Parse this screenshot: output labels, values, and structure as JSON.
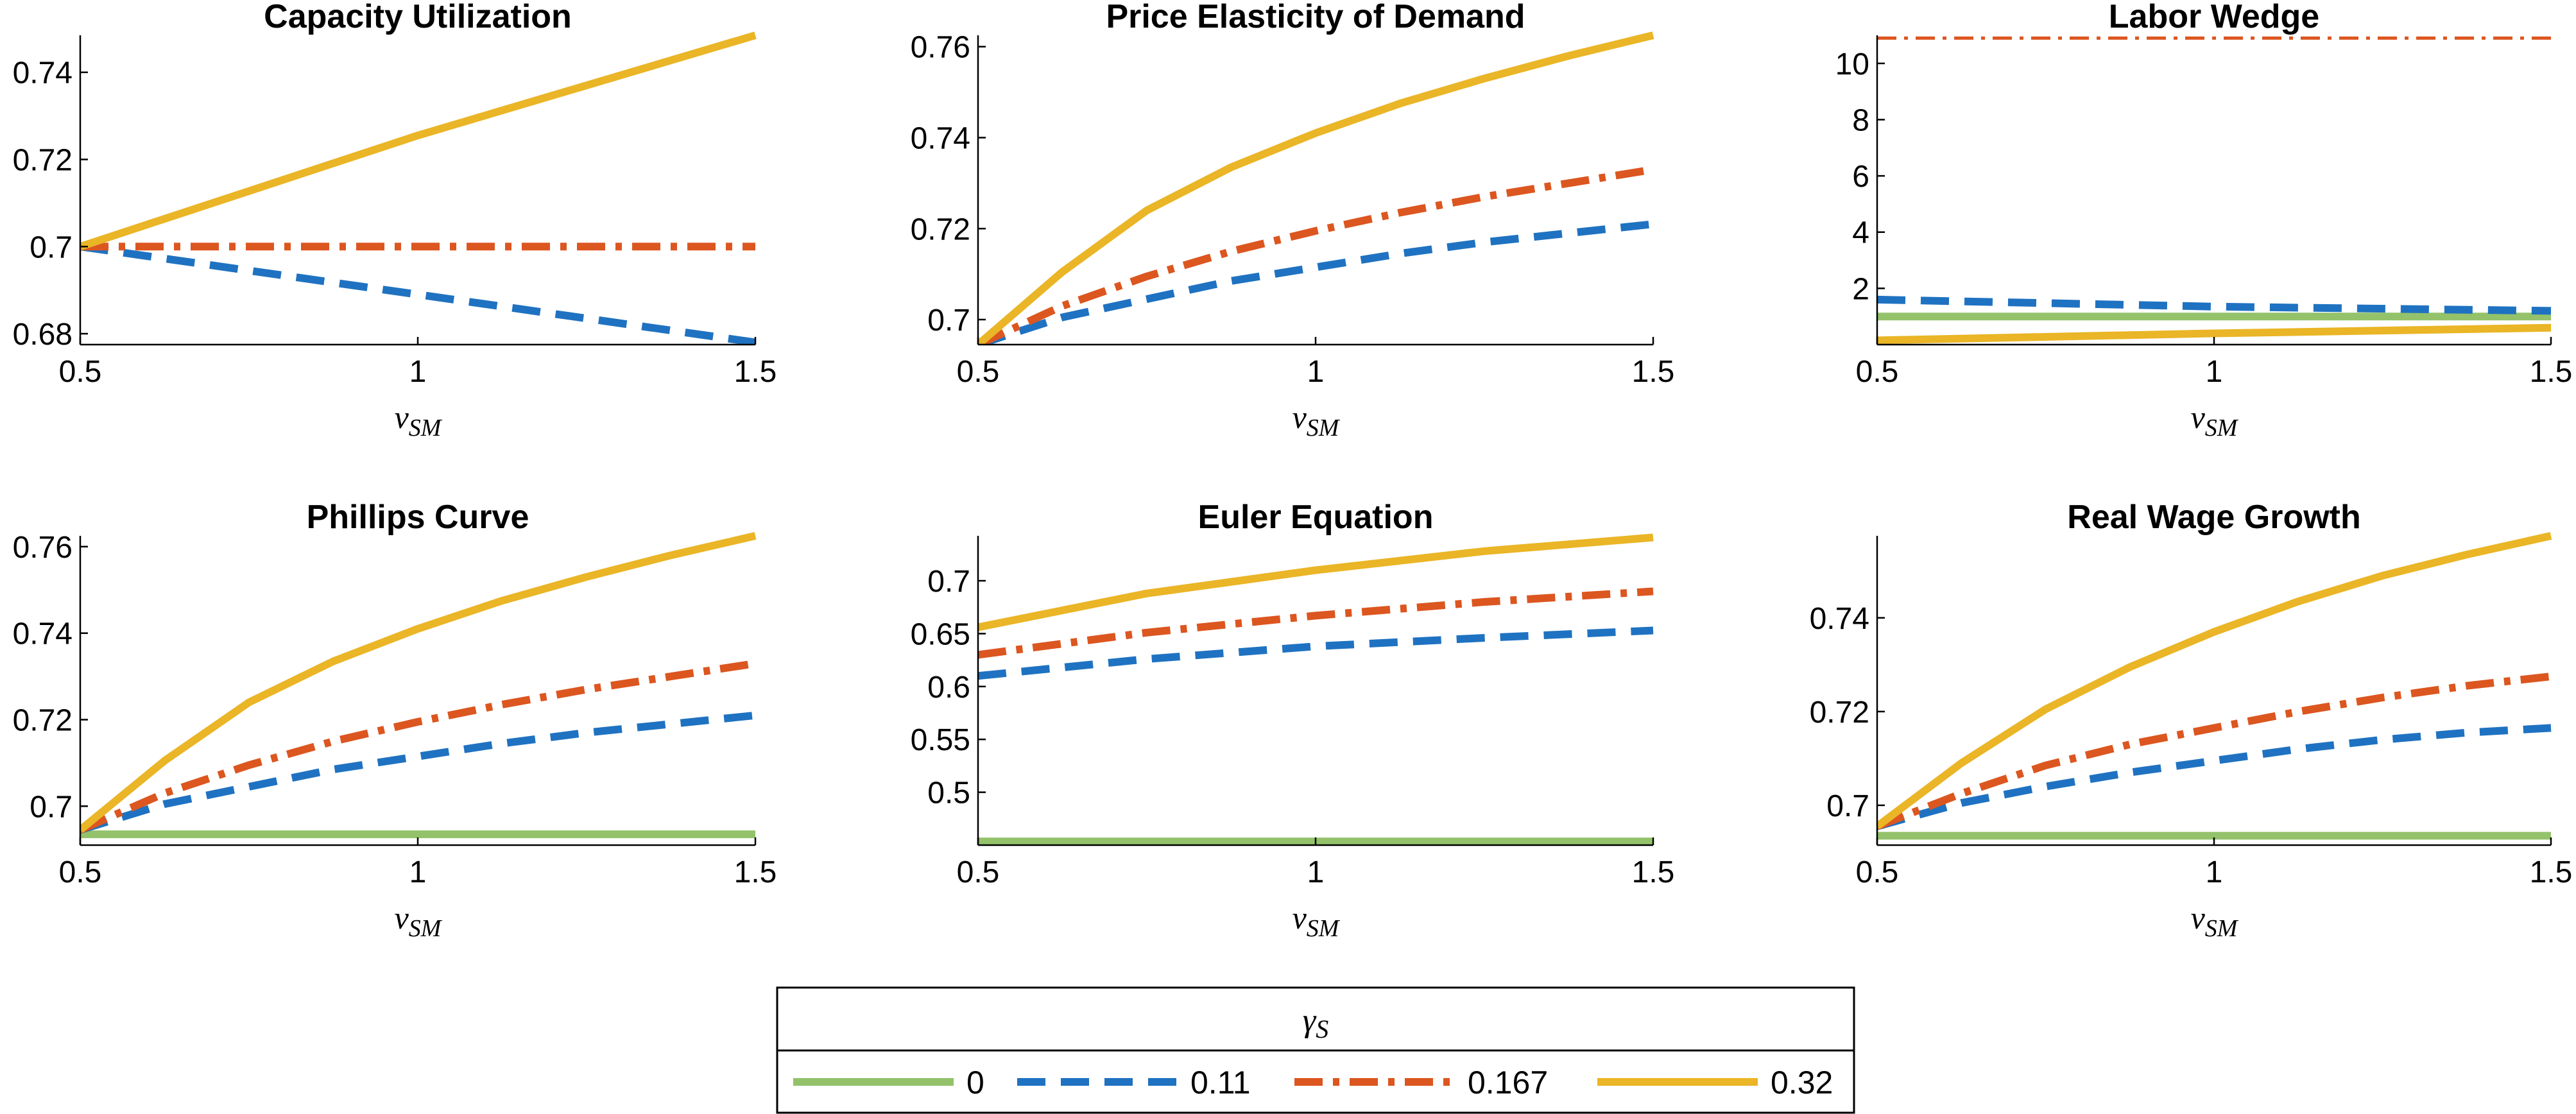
{
  "colors": {
    "g0": "#93c26a",
    "g011": "#1f72c1",
    "g0167": "#dc5620",
    "g032": "#eab526"
  },
  "chart_data": [
    {
      "type": "line",
      "title": "Capacity Utilization",
      "xlabel": "ν",
      "xlabel_sub": "SM",
      "xlim": [
        0.5,
        1.5
      ],
      "ylim": [
        0.6775,
        0.7485
      ],
      "xticks": [
        0.5,
        1,
        1.5
      ],
      "xtick_labels": [
        "0.5",
        "1",
        "1.5"
      ],
      "yticks": [
        0.68,
        0.7,
        0.72,
        0.74
      ],
      "ytick_labels": [
        "0.68",
        "0.7",
        "0.72",
        "0.74"
      ],
      "series": [
        {
          "key": "g011",
          "x": [
            0.5,
            1.5
          ],
          "y": [
            0.7,
            0.678
          ]
        },
        {
          "key": "g0167",
          "x": [
            0.5,
            1.5
          ],
          "y": [
            0.7,
            0.7
          ]
        },
        {
          "key": "g032",
          "x": [
            0.5,
            1.0,
            1.5
          ],
          "y": [
            0.7,
            0.7255,
            0.7485
          ]
        }
      ]
    },
    {
      "type": "line",
      "title": "Price Elasticity of Demand",
      "xlabel": "ν",
      "xlabel_sub": "SM",
      "xlim": [
        0.5,
        1.5
      ],
      "ylim": [
        0.6945,
        0.7625
      ],
      "xticks": [
        0.5,
        1,
        1.5
      ],
      "xtick_labels": [
        "0.5",
        "1",
        "1.5"
      ],
      "yticks": [
        0.7,
        0.72,
        0.74,
        0.76
      ],
      "ytick_labels": [
        "0.7",
        "0.72",
        "0.74",
        "0.76"
      ],
      "series": [
        {
          "key": "g011",
          "x": [
            0.5,
            0.625,
            0.75,
            0.875,
            1.0,
            1.125,
            1.25,
            1.375,
            1.5
          ],
          "y": [
            0.6945,
            0.7005,
            0.7045,
            0.7085,
            0.7115,
            0.7145,
            0.717,
            0.719,
            0.721
          ]
        },
        {
          "key": "g0167",
          "x": [
            0.5,
            0.625,
            0.75,
            0.875,
            1.0,
            1.125,
            1.25,
            1.375,
            1.5
          ],
          "y": [
            0.6945,
            0.703,
            0.7095,
            0.715,
            0.7195,
            0.7235,
            0.727,
            0.73,
            0.733
          ]
        },
        {
          "key": "g032",
          "x": [
            0.5,
            0.625,
            0.75,
            0.875,
            1.0,
            1.125,
            1.25,
            1.375,
            1.5
          ],
          "y": [
            0.6945,
            0.7105,
            0.724,
            0.7335,
            0.741,
            0.7475,
            0.753,
            0.758,
            0.7625
          ]
        }
      ]
    },
    {
      "type": "line",
      "title": "Labor Wedge",
      "xlabel": "ν",
      "xlabel_sub": "SM",
      "xlim": [
        0.5,
        1.5
      ],
      "ylim": [
        0.0,
        11.0
      ],
      "xticks": [
        0.5,
        1,
        1.5
      ],
      "xtick_labels": [
        "0.5",
        "1",
        "1.5"
      ],
      "yticks": [
        2,
        4,
        6,
        8,
        10
      ],
      "ytick_labels": [
        "2",
        "4",
        "6",
        "8",
        "10"
      ],
      "series": [
        {
          "key": "g0",
          "x": [
            0.5,
            1.5
          ],
          "y": [
            1.0,
            1.0
          ]
        },
        {
          "key": "g011",
          "x": [
            0.5,
            1.0,
            1.5
          ],
          "y": [
            1.6,
            1.35,
            1.2
          ]
        },
        {
          "key": "g0167",
          "x": [
            0.5,
            1.5
          ],
          "y": [
            10.9,
            10.9
          ]
        },
        {
          "key": "g032",
          "x": [
            0.5,
            1.0,
            1.5
          ],
          "y": [
            0.15,
            0.4,
            0.6
          ]
        }
      ]
    },
    {
      "type": "line",
      "title": "Phillips Curve",
      "xlabel": "ν",
      "xlabel_sub": "SM",
      "xlim": [
        0.5,
        1.5
      ],
      "ylim": [
        0.691,
        0.7625
      ],
      "xticks": [
        0.5,
        1,
        1.5
      ],
      "xtick_labels": [
        "0.5",
        "1",
        "1.5"
      ],
      "yticks": [
        0.7,
        0.72,
        0.74,
        0.76
      ],
      "ytick_labels": [
        "0.7",
        "0.72",
        "0.74",
        "0.76"
      ],
      "series": [
        {
          "key": "g0",
          "x": [
            0.5,
            1.5
          ],
          "y": [
            0.6935,
            0.6935
          ]
        },
        {
          "key": "g011",
          "x": [
            0.5,
            0.625,
            0.75,
            0.875,
            1.0,
            1.125,
            1.25,
            1.375,
            1.5
          ],
          "y": [
            0.6945,
            0.7005,
            0.7045,
            0.7085,
            0.7115,
            0.7145,
            0.717,
            0.719,
            0.721
          ]
        },
        {
          "key": "g0167",
          "x": [
            0.5,
            0.625,
            0.75,
            0.875,
            1.0,
            1.125,
            1.25,
            1.375,
            1.5
          ],
          "y": [
            0.6945,
            0.703,
            0.7095,
            0.715,
            0.7195,
            0.7235,
            0.727,
            0.73,
            0.733
          ]
        },
        {
          "key": "g032",
          "x": [
            0.5,
            0.625,
            0.75,
            0.875,
            1.0,
            1.125,
            1.25,
            1.375,
            1.5
          ],
          "y": [
            0.6945,
            0.7105,
            0.724,
            0.7335,
            0.741,
            0.7475,
            0.753,
            0.758,
            0.7625
          ]
        }
      ]
    },
    {
      "type": "line",
      "title": "Euler Equation",
      "xlabel": "ν",
      "xlabel_sub": "SM",
      "xlim": [
        0.5,
        1.5
      ],
      "ylim": [
        0.45,
        0.7425
      ],
      "xticks": [
        0.5,
        1,
        1.5
      ],
      "xtick_labels": [
        "0.5",
        "1",
        "1.5"
      ],
      "yticks": [
        0.5,
        0.55,
        0.6,
        0.65,
        0.7
      ],
      "ytick_labels": [
        "0.5",
        "0.55",
        "0.6",
        "0.65",
        "0.7"
      ],
      "series": [
        {
          "key": "g0",
          "x": [
            0.5,
            1.5
          ],
          "y": [
            0.4535,
            0.4535
          ]
        },
        {
          "key": "g011",
          "x": [
            0.5,
            0.75,
            1.0,
            1.25,
            1.5
          ],
          "y": [
            0.61,
            0.626,
            0.638,
            0.646,
            0.653
          ]
        },
        {
          "key": "g0167",
          "x": [
            0.5,
            0.75,
            1.0,
            1.25,
            1.5
          ],
          "y": [
            0.63,
            0.651,
            0.667,
            0.68,
            0.69
          ]
        },
        {
          "key": "g032",
          "x": [
            0.5,
            0.75,
            1.0,
            1.25,
            1.5
          ],
          "y": [
            0.656,
            0.688,
            0.71,
            0.728,
            0.741
          ]
        }
      ]
    },
    {
      "type": "line",
      "title": "Real Wage Growth",
      "xlabel": "ν",
      "xlabel_sub": "SM",
      "xlim": [
        0.5,
        1.5
      ],
      "ylim": [
        0.6915,
        0.7575
      ],
      "xticks": [
        0.5,
        1,
        1.5
      ],
      "xtick_labels": [
        "0.5",
        "1",
        "1.5"
      ],
      "yticks": [
        0.7,
        0.72,
        0.74
      ],
      "ytick_labels": [
        "0.7",
        "0.72",
        "0.74"
      ],
      "series": [
        {
          "key": "g0",
          "x": [
            0.5,
            1.5
          ],
          "y": [
            0.6935,
            0.6935
          ]
        },
        {
          "key": "g011",
          "x": [
            0.5,
            0.625,
            0.75,
            0.875,
            1.0,
            1.125,
            1.25,
            1.375,
            1.5
          ],
          "y": [
            0.6955,
            0.7005,
            0.704,
            0.707,
            0.7095,
            0.712,
            0.714,
            0.7155,
            0.7165
          ]
        },
        {
          "key": "g0167",
          "x": [
            0.5,
            0.625,
            0.75,
            0.875,
            1.0,
            1.125,
            1.25,
            1.375,
            1.5
          ],
          "y": [
            0.6955,
            0.7025,
            0.7085,
            0.713,
            0.7165,
            0.72,
            0.723,
            0.7255,
            0.7275
          ]
        },
        {
          "key": "g032",
          "x": [
            0.5,
            0.625,
            0.75,
            0.875,
            1.0,
            1.125,
            1.25,
            1.375,
            1.5
          ],
          "y": [
            0.6955,
            0.709,
            0.7205,
            0.7295,
            0.737,
            0.7435,
            0.749,
            0.7535,
            0.7575
          ]
        }
      ]
    }
  ],
  "legend": {
    "title": "γ",
    "title_sub": "S",
    "entries": [
      {
        "key": "g0",
        "label": "0"
      },
      {
        "key": "g011",
        "label": "0.11"
      },
      {
        "key": "g0167",
        "label": "0.167"
      },
      {
        "key": "g032",
        "label": "0.32"
      }
    ]
  }
}
